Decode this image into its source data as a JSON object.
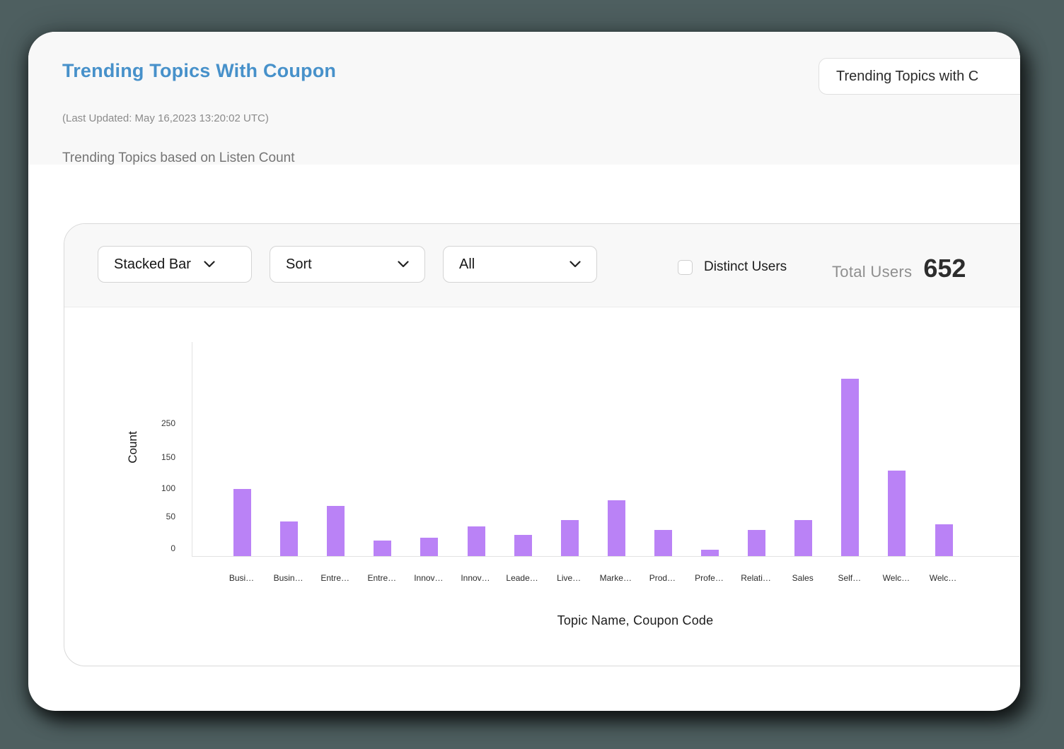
{
  "page": {
    "background_color": "#4e5f60"
  },
  "header": {
    "title": "Trending Topics With Coupon",
    "last_updated": "(Last Updated: May 16,2023 13:20:02 UTC)",
    "subtitle": "Trending Topics based on Listen Count",
    "nav_button_label": "Trending Topics with C"
  },
  "filters": {
    "chart_type": {
      "value": "Stacked Bar"
    },
    "sort": {
      "value": "Sort"
    },
    "scope": {
      "value": "All"
    },
    "distinct_users": {
      "label": "Distinct Users",
      "checked": false
    },
    "total_users": {
      "label": "Total Users",
      "value": "652"
    }
  },
  "chart_data": {
    "type": "bar",
    "ylabel": "Count",
    "xlabel": "Topic Name, Coupon Code",
    "y_ticks": [
      0,
      50,
      100,
      150,
      250
    ],
    "bar_color": "#ba82f6",
    "grid": false,
    "categories": [
      "Busi…",
      "Busin…",
      "Entre…",
      "Entre…",
      "Innov…",
      "Innov…",
      "Leade…",
      "Live…",
      "Marke…",
      "Prod…",
      "Profe…",
      "Relati…",
      "Sales",
      "Self…",
      "Welc…",
      "Welc…"
    ],
    "values": [
      107,
      55,
      80,
      25,
      29,
      47,
      34,
      58,
      89,
      42,
      10,
      42,
      58,
      284,
      137,
      51
    ]
  }
}
